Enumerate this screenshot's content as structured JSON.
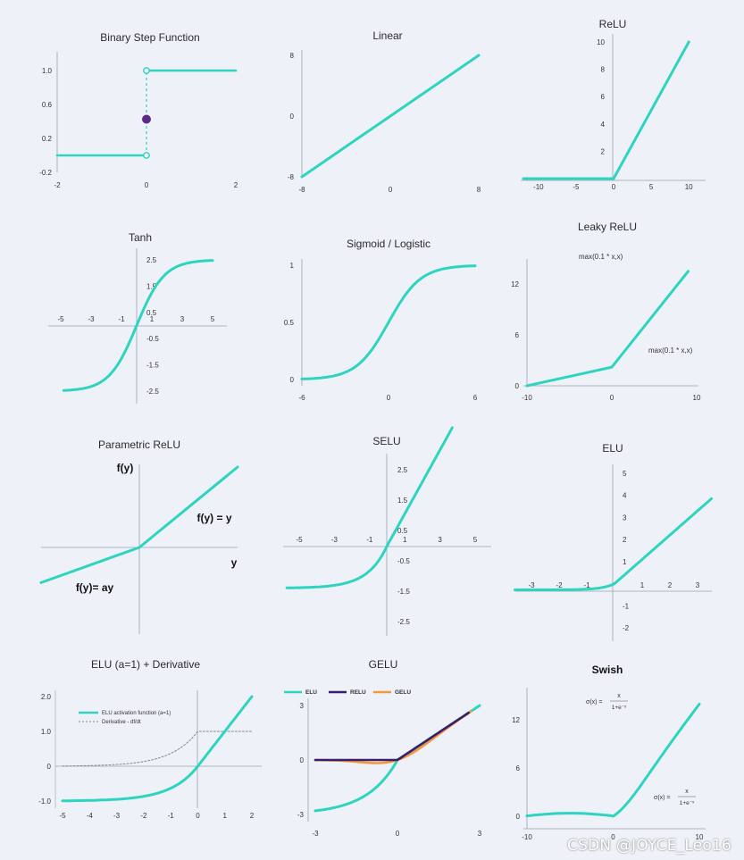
{
  "colors": {
    "primary": "#2dd4bf",
    "relu": "#3b1d6b",
    "gelu": "#f29a3a",
    "point": "#5b2a86",
    "axis": "#9aa3b2",
    "text": "#333333",
    "background": "#eef1f7"
  },
  "watermark": "CSDN @JOYCE_Leo16",
  "chart_data": [
    {
      "id": "binary-step",
      "type": "line",
      "title": "Binary Step Function",
      "xlim": [
        -2,
        2
      ],
      "ylim": [
        -0.2,
        1.0
      ],
      "xticks": [
        "-2",
        "0",
        "2"
      ],
      "yticks": [
        "-0.2",
        "0.2",
        "0.6",
        "1.0"
      ],
      "series": [
        {
          "x": [
            -2,
            0
          ],
          "y": [
            0,
            0
          ]
        },
        {
          "x": [
            0,
            2
          ],
          "y": [
            1,
            1
          ]
        }
      ],
      "dashed_at": 0,
      "point": [
        0,
        0.5
      ]
    },
    {
      "id": "linear",
      "type": "line",
      "title": "Linear",
      "xlim": [
        -8,
        8
      ],
      "ylim": [
        -8,
        8
      ],
      "xticks": [
        "-8",
        "0",
        "8"
      ],
      "yticks": [
        "-8",
        "0",
        "8"
      ],
      "series": [
        {
          "x": [
            -8,
            8
          ],
          "y": [
            -8,
            8
          ]
        }
      ]
    },
    {
      "id": "relu",
      "type": "line",
      "title": "ReLU",
      "xlim": [
        -12,
        12
      ],
      "ylim": [
        0,
        10
      ],
      "xticks": [
        "-10",
        "-5",
        "0",
        "5",
        "10"
      ],
      "yticks": [
        "2",
        "4",
        "6",
        "8",
        "10"
      ],
      "series": [
        {
          "x": [
            -12,
            0,
            10
          ],
          "y": [
            0,
            0,
            10
          ]
        }
      ]
    },
    {
      "id": "tanh",
      "type": "line",
      "title": "Tanh",
      "xlim": [
        -5,
        5
      ],
      "ylim": [
        -2.5,
        2.5
      ],
      "xticks": [
        "-5",
        "-3",
        "-1",
        "1",
        "3",
        "5"
      ],
      "yticks": [
        "2.5",
        "1.5",
        "0.5",
        "-0.5",
        "-1.5",
        "-2.5"
      ],
      "fn": "tanh"
    },
    {
      "id": "sigmoid",
      "type": "line",
      "title": "Sigmoid / Logistic",
      "xlim": [
        -6,
        6
      ],
      "ylim": [
        0,
        1
      ],
      "xticks": [
        "-6",
        "0",
        "6"
      ],
      "yticks": [
        "0",
        "0.5",
        "1"
      ],
      "fn": "sigmoid"
    },
    {
      "id": "leaky-relu",
      "type": "line",
      "title": "Leaky ReLU",
      "xlim": [
        -10,
        10
      ],
      "ylim": [
        0,
        12
      ],
      "xticks": [
        "-10",
        "0",
        "10"
      ],
      "yticks": [
        "0",
        "6",
        "12"
      ],
      "series": [
        {
          "x": [
            -10,
            0,
            9
          ],
          "y": [
            0,
            2.2,
            13.5
          ]
        }
      ],
      "annotations": [
        "max(0.1 * x,x)",
        "max(0.1 * x,x)"
      ]
    },
    {
      "id": "parametric-relu",
      "type": "line",
      "title": "Parametric ReLU",
      "series": [
        {
          "x": [
            -1,
            0,
            1
          ],
          "y": [
            -0.35,
            0,
            0.8
          ]
        }
      ],
      "labels": [
        "f(y)",
        "f(y) = y",
        "y",
        "f(y)= ay"
      ]
    },
    {
      "id": "selu",
      "type": "line",
      "title": "SELU",
      "xlim": [
        -5,
        5
      ],
      "ylim": [
        -2.5,
        2.5
      ],
      "xticks": [
        "-5",
        "-3",
        "-1",
        "1",
        "3",
        "5"
      ],
      "yticks": [
        "2.5",
        "1.5",
        "0.5",
        "-0.5",
        "-1.5",
        "-2.5"
      ],
      "fn": "selu"
    },
    {
      "id": "elu",
      "type": "line",
      "title": "ELU",
      "xlim": [
        -3,
        3
      ],
      "ylim": [
        -2,
        5
      ],
      "xticks": [
        "-3",
        "-2",
        "-1",
        "1",
        "2",
        "3"
      ],
      "yticks": [
        "5",
        "4",
        "3",
        "2",
        "1",
        "-1",
        "-2"
      ],
      "fn": "elu"
    },
    {
      "id": "elu-derivative",
      "type": "line",
      "title": "ELU (a=1) + Derivative",
      "xlim": [
        -5,
        2
      ],
      "ylim": [
        -1,
        2
      ],
      "xticks": [
        "-5",
        "-4",
        "-3",
        "-2",
        "-1",
        "0",
        "1",
        "2"
      ],
      "yticks": [
        "2.0",
        "1.0",
        "0",
        "-1.0"
      ],
      "legend": [
        "ELU activation function (a=1)",
        "Derivative - df/dt"
      ],
      "fn": "elu_deriv"
    },
    {
      "id": "gelu",
      "type": "line",
      "title": "GELU",
      "xlim": [
        -3,
        3
      ],
      "ylim": [
        -3,
        3
      ],
      "xticks": [
        "-3",
        "0",
        "3"
      ],
      "yticks": [
        "3",
        "0",
        "-3"
      ],
      "legend": [
        "ELU",
        "RELU",
        "GELU"
      ],
      "fn": "gelu"
    },
    {
      "id": "swish",
      "type": "line",
      "title": "Swish",
      "xlim": [
        -10,
        10
      ],
      "ylim": [
        0,
        12
      ],
      "xticks": [
        "-10",
        "0",
        "10"
      ],
      "yticks": [
        "0",
        "6",
        "12"
      ],
      "fn": "swish",
      "formula": {
        "lhs": "σ(x) =",
        "num": "x",
        "den": "1+e⁻ˣ"
      }
    }
  ]
}
